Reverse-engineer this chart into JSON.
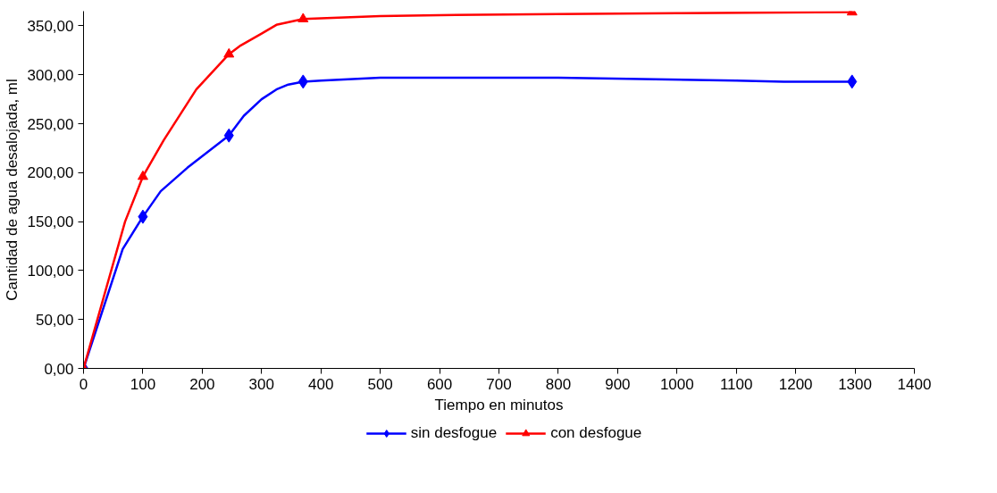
{
  "chart_data": {
    "type": "line",
    "xlabel": "Tiempo en minutos",
    "ylabel": "Cantidad de agua desalojada, ml",
    "series": [
      {
        "name": "sin desfogue",
        "color": "#0000ff",
        "marker": "none",
        "x": [
          0,
          66,
          100,
          130,
          175,
          245,
          270,
          300,
          325,
          345,
          370,
          400,
          500,
          800,
          1100,
          1180,
          1295
        ],
        "values": [
          0,
          122,
          155,
          181,
          205,
          238,
          258,
          275,
          285,
          290,
          293,
          294,
          297,
          297,
          294,
          293,
          293
        ]
      },
      {
        "color": "#0000ff",
        "type": "scatter",
        "marker": "diamond",
        "x": [
          0,
          100,
          245,
          370,
          1295
        ],
        "values": [
          0,
          155,
          238,
          293,
          293
        ]
      },
      {
        "name": "con desfogue",
        "color": "#ff0000",
        "marker": "none",
        "x": [
          0,
          70,
          100,
          135,
          190,
          245,
          265,
          300,
          325,
          370,
          500,
          600,
          800,
          1000,
          1295
        ],
        "values": [
          0,
          150,
          196,
          233,
          285,
          321,
          330,
          342,
          351,
          357,
          360,
          361,
          362,
          363,
          364
        ]
      },
      {
        "color": "#ff0000",
        "type": "scatter",
        "marker": "triangle",
        "x": [
          0,
          100,
          245,
          370,
          1295
        ],
        "values": [
          0,
          196,
          321,
          357,
          364
        ]
      }
    ],
    "xlim": [
      0,
      1400
    ],
    "xticks": [
      0,
      100,
      200,
      300,
      400,
      500,
      600,
      700,
      800,
      900,
      1000,
      1100,
      1200,
      1300,
      1400
    ],
    "ylim": [
      0,
      365
    ],
    "yticks": [
      {
        "value": 0,
        "label": "0,00"
      },
      {
        "value": 50,
        "label": "50,00"
      },
      {
        "value": 100,
        "label": "100,00"
      },
      {
        "value": 150,
        "label": "150,00"
      },
      {
        "value": 200,
        "label": "200,00"
      },
      {
        "value": 250,
        "label": "250,00"
      },
      {
        "value": 300,
        "label": "300,00"
      },
      {
        "value": 350,
        "label": "350,00"
      }
    ],
    "grid": false,
    "legend": "bottom",
    "line_style": "solid"
  }
}
